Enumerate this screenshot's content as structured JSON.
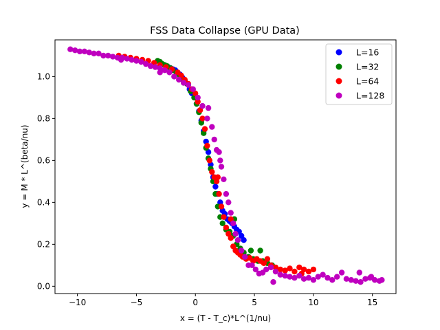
{
  "chart_data": {
    "type": "scatter",
    "title": "FSS Data Collapse (GPU Data)",
    "xlabel": "x = (T - T_c)*L^(1/nu)",
    "ylabel": "y = M * L^(beta/nu)",
    "xlim": [
      -11.9,
      17.0
    ],
    "ylim": [
      -0.035,
      1.175
    ],
    "xticks": [
      -10,
      -5,
      0,
      5,
      10,
      15
    ],
    "yticks": [
      0.0,
      0.2,
      0.4,
      0.6,
      0.8,
      1.0
    ],
    "xtick_labels": [
      "−10",
      "−5",
      "0",
      "5",
      "10",
      "15"
    ],
    "ytick_labels": [
      "0.0",
      "0.2",
      "0.4",
      "0.6",
      "0.8",
      "1.0"
    ],
    "grid": false,
    "legend_position": "top-right",
    "series": [
      {
        "name": "L=16",
        "color": "#0000ff",
        "points": [
          [
            -2.5,
            1.05
          ],
          [
            -2.3,
            1.045
          ],
          [
            -2.1,
            1.04
          ],
          [
            -1.9,
            1.035
          ],
          [
            -1.7,
            1.03
          ],
          [
            -1.5,
            1.02
          ],
          [
            -1.3,
            1.01
          ],
          [
            -1.1,
            0.995
          ],
          [
            -0.9,
            0.98
          ],
          [
            -0.7,
            0.965
          ],
          [
            -0.5,
            0.94
          ],
          [
            -0.3,
            0.92
          ],
          [
            -0.1,
            0.9
          ],
          [
            0.1,
            0.87
          ],
          [
            0.3,
            0.835
          ],
          [
            0.5,
            0.79
          ],
          [
            0.7,
            0.74
          ],
          [
            0.9,
            0.69
          ],
          [
            1.1,
            0.64
          ],
          [
            1.3,
            0.58
          ],
          [
            1.5,
            0.52
          ],
          [
            1.7,
            0.475
          ],
          [
            1.9,
            0.44
          ],
          [
            2.1,
            0.4
          ],
          [
            2.3,
            0.36
          ],
          [
            2.5,
            0.345
          ],
          [
            2.7,
            0.32
          ],
          [
            2.9,
            0.31
          ],
          [
            3.1,
            0.3
          ],
          [
            3.3,
            0.285
          ],
          [
            3.5,
            0.27
          ],
          [
            3.7,
            0.26
          ],
          [
            3.9,
            0.24
          ],
          [
            4.1,
            0.22
          ]
        ]
      },
      {
        "name": "L=32",
        "color": "#008000",
        "points": [
          [
            -3.2,
            1.075
          ],
          [
            -3.0,
            1.07
          ],
          [
            -2.8,
            1.06
          ],
          [
            -2.6,
            1.055
          ],
          [
            -2.4,
            1.05
          ],
          [
            -2.1,
            1.04
          ],
          [
            -1.9,
            1.03
          ],
          [
            -1.6,
            1.015
          ],
          [
            -1.3,
            1.0
          ],
          [
            -1.0,
            0.98
          ],
          [
            -0.7,
            0.965
          ],
          [
            -0.4,
            0.93
          ],
          [
            -0.1,
            0.9
          ],
          [
            0.1,
            0.87
          ],
          [
            0.3,
            0.83
          ],
          [
            0.5,
            0.78
          ],
          [
            0.7,
            0.73
          ],
          [
            0.9,
            0.66
          ],
          [
            1.1,
            0.61
          ],
          [
            1.3,
            0.56
          ],
          [
            1.5,
            0.5
          ],
          [
            1.7,
            0.44
          ],
          [
            1.9,
            0.38
          ],
          [
            2.1,
            0.33
          ],
          [
            2.3,
            0.3
          ],
          [
            2.6,
            0.27
          ],
          [
            2.9,
            0.26
          ],
          [
            3.2,
            0.24
          ],
          [
            3.5,
            0.2
          ],
          [
            3.8,
            0.18
          ],
          [
            4.1,
            0.16
          ],
          [
            4.5,
            0.14
          ],
          [
            4.9,
            0.13
          ],
          [
            5.3,
            0.12
          ],
          [
            5.7,
            0.12
          ],
          [
            6.1,
            0.11
          ],
          [
            6.5,
            0.1
          ],
          [
            4.7,
            0.17
          ],
          [
            5.5,
            0.17
          ],
          [
            3.3,
            0.32
          ]
        ]
      },
      {
        "name": "L=64",
        "color": "#ff0000",
        "points": [
          [
            -6.5,
            1.1
          ],
          [
            -6.0,
            1.095
          ],
          [
            -5.5,
            1.09
          ],
          [
            -5.0,
            1.085
          ],
          [
            -4.5,
            1.08
          ],
          [
            -4.0,
            1.075
          ],
          [
            -3.5,
            1.065
          ],
          [
            -3.0,
            1.055
          ],
          [
            -2.5,
            1.045
          ],
          [
            -2.0,
            1.035
          ],
          [
            -1.5,
            1.02
          ],
          [
            -1.2,
            1.005
          ],
          [
            -0.9,
            0.985
          ],
          [
            -0.6,
            0.965
          ],
          [
            -0.3,
            0.94
          ],
          [
            0.0,
            0.92
          ],
          [
            0.2,
            0.88
          ],
          [
            0.4,
            0.84
          ],
          [
            0.6,
            0.8
          ],
          [
            0.8,
            0.75
          ],
          [
            1.0,
            0.67
          ],
          [
            1.2,
            0.6
          ],
          [
            1.4,
            0.545
          ],
          [
            1.6,
            0.52
          ],
          [
            1.8,
            0.5
          ],
          [
            2.0,
            0.44
          ],
          [
            2.2,
            0.38
          ],
          [
            2.4,
            0.33
          ],
          [
            2.6,
            0.28
          ],
          [
            2.8,
            0.25
          ],
          [
            3.0,
            0.23
          ],
          [
            3.2,
            0.19
          ],
          [
            3.4,
            0.17
          ],
          [
            3.6,
            0.16
          ],
          [
            3.8,
            0.15
          ],
          [
            4.0,
            0.14
          ],
          [
            4.3,
            0.13
          ],
          [
            4.6,
            0.135
          ],
          [
            4.9,
            0.12
          ],
          [
            5.2,
            0.13
          ],
          [
            5.5,
            0.12
          ],
          [
            5.8,
            0.11
          ],
          [
            6.1,
            0.13
          ],
          [
            6.4,
            0.1
          ],
          [
            6.8,
            0.09
          ],
          [
            7.2,
            0.08
          ],
          [
            7.6,
            0.075
          ],
          [
            8.0,
            0.085
          ],
          [
            8.4,
            0.07
          ],
          [
            8.8,
            0.09
          ],
          [
            9.2,
            0.08
          ],
          [
            9.6,
            0.07
          ],
          [
            10.0,
            0.08
          ],
          [
            9.0,
            0.06
          ],
          [
            3.0,
            0.32
          ],
          [
            1.9,
            0.52
          ]
        ]
      },
      {
        "name": "L=128",
        "color": "#bf00bf",
        "points": [
          [
            -10.6,
            1.13
          ],
          [
            -10.2,
            1.125
          ],
          [
            -9.8,
            1.12
          ],
          [
            -9.4,
            1.12
          ],
          [
            -9.0,
            1.115
          ],
          [
            -8.6,
            1.11
          ],
          [
            -8.2,
            1.11
          ],
          [
            -7.8,
            1.1
          ],
          [
            -7.4,
            1.1
          ],
          [
            -7.0,
            1.095
          ],
          [
            -6.6,
            1.09
          ],
          [
            -6.2,
            1.09
          ],
          [
            -5.8,
            1.085
          ],
          [
            -5.4,
            1.08
          ],
          [
            -5.0,
            1.075
          ],
          [
            -4.6,
            1.07
          ],
          [
            -4.2,
            1.06
          ],
          [
            -3.8,
            1.05
          ],
          [
            -3.4,
            1.045
          ],
          [
            -3.0,
            1.04
          ],
          [
            -2.6,
            1.03
          ],
          [
            -2.2,
            1.02
          ],
          [
            -1.8,
            1.0
          ],
          [
            -1.4,
            0.985
          ],
          [
            -1.0,
            0.97
          ],
          [
            -0.6,
            0.96
          ],
          [
            -0.2,
            0.94
          ],
          [
            0.2,
            0.9
          ],
          [
            0.6,
            0.86
          ],
          [
            1.0,
            0.8
          ],
          [
            1.1,
            0.85
          ],
          [
            1.4,
            0.76
          ],
          [
            1.6,
            0.7
          ],
          [
            1.8,
            0.65
          ],
          [
            2.0,
            0.64
          ],
          [
            2.2,
            0.57
          ],
          [
            2.4,
            0.51
          ],
          [
            2.6,
            0.44
          ],
          [
            2.8,
            0.4
          ],
          [
            3.0,
            0.35
          ],
          [
            3.2,
            0.3
          ],
          [
            3.4,
            0.25
          ],
          [
            3.6,
            0.22
          ],
          [
            3.9,
            0.17
          ],
          [
            4.2,
            0.14
          ],
          [
            4.5,
            0.1
          ],
          [
            4.8,
            0.1
          ],
          [
            5.1,
            0.08
          ],
          [
            5.4,
            0.06
          ],
          [
            5.7,
            0.065
          ],
          [
            6.0,
            0.08
          ],
          [
            6.4,
            0.09
          ],
          [
            6.8,
            0.07
          ],
          [
            7.2,
            0.055
          ],
          [
            7.6,
            0.05
          ],
          [
            8.0,
            0.045
          ],
          [
            8.4,
            0.04
          ],
          [
            8.8,
            0.05
          ],
          [
            9.2,
            0.035
          ],
          [
            9.6,
            0.04
          ],
          [
            10.0,
            0.03
          ],
          [
            10.4,
            0.045
          ],
          [
            10.8,
            0.055
          ],
          [
            11.2,
            0.04
          ],
          [
            11.6,
            0.03
          ],
          [
            12.0,
            0.045
          ],
          [
            12.4,
            0.065
          ],
          [
            12.8,
            0.035
          ],
          [
            13.2,
            0.03
          ],
          [
            13.6,
            0.025
          ],
          [
            14.0,
            0.02
          ],
          [
            14.4,
            0.035
          ],
          [
            14.8,
            0.04
          ],
          [
            15.2,
            0.03
          ],
          [
            15.6,
            0.025
          ],
          [
            15.8,
            0.03
          ],
          [
            13.9,
            0.065
          ],
          [
            14.9,
            0.045
          ],
          [
            6.6,
            0.02
          ],
          [
            2.1,
            0.6
          ],
          [
            -3.0,
            1.02
          ],
          [
            -6.3,
            1.08
          ]
        ]
      }
    ]
  }
}
